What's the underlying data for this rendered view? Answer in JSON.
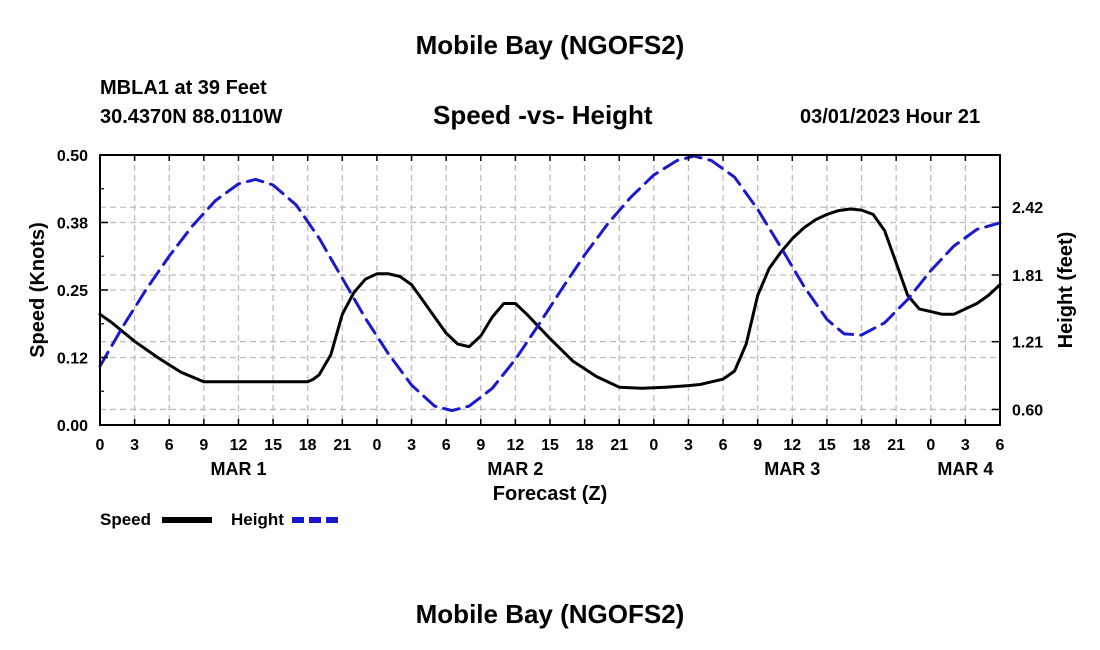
{
  "header": {
    "title": "Mobile Bay (NGOFS2)",
    "station": "MBLA1 at 39 Feet",
    "coords": "30.4370N  88.0110W",
    "subtitle": "Speed -vs- Height",
    "datetime": "03/01/2023 Hour 21"
  },
  "footer": {
    "title": "Mobile Bay (NGOFS2)"
  },
  "chart_data": {
    "type": "line",
    "xlabel": "Forecast (Z)",
    "x_ticks": [
      "0",
      "3",
      "6",
      "9",
      "12",
      "15",
      "18",
      "21",
      "0",
      "3",
      "6",
      "9",
      "12",
      "15",
      "18",
      "21",
      "0",
      "3",
      "6",
      "9",
      "12",
      "15",
      "18",
      "21",
      "0",
      "3",
      "6"
    ],
    "date_labels": [
      {
        "label": "MAR 1",
        "hour": 12
      },
      {
        "label": "MAR 2",
        "hour": 36
      },
      {
        "label": "MAR 3",
        "hour": 60
      },
      {
        "label": "MAR 4",
        "hour": 75
      }
    ],
    "xlim": [
      0,
      78
    ],
    "ylabel_left": "Speed (Knots)",
    "ylim_left": [
      0,
      0.5
    ],
    "yticks_left": [
      "0.00",
      "0.12",
      "0.25",
      "0.38",
      "0.50"
    ],
    "ylabel_right": "Height (feet)",
    "yticks_right": [
      {
        "label": "0.60",
        "value": 0.6
      },
      {
        "label": "1.21",
        "value": 1.21
      },
      {
        "label": "1.81",
        "value": 1.81
      },
      {
        "label": "2.42",
        "value": 2.42
      }
    ],
    "ylim_right": [
      0.46,
      2.89
    ],
    "grid": true,
    "legend_position": "bottom-left",
    "series": [
      {
        "name": "Speed",
        "axis": "left",
        "color": "#000000",
        "style": "solid",
        "x": [
          0,
          1,
          3,
          5,
          7,
          9,
          11,
          13,
          15,
          17,
          18,
          18.5,
          19,
          20,
          21,
          22,
          23,
          24,
          25,
          26,
          27,
          28,
          29,
          30,
          31,
          32,
          33,
          34,
          35,
          36,
          37,
          39,
          41,
          43,
          45,
          47,
          49,
          51,
          52,
          53,
          54,
          55,
          56,
          57,
          58,
          59,
          60,
          61,
          62,
          63,
          64,
          65,
          66,
          67,
          68,
          69,
          70,
          71,
          72,
          73,
          74,
          75,
          76,
          77,
          78
        ],
        "values": [
          0.205,
          0.19,
          0.155,
          0.125,
          0.098,
          0.08,
          0.08,
          0.08,
          0.08,
          0.08,
          0.08,
          0.085,
          0.093,
          0.13,
          0.205,
          0.245,
          0.27,
          0.28,
          0.28,
          0.275,
          0.26,
          0.23,
          0.2,
          0.17,
          0.15,
          0.145,
          0.165,
          0.2,
          0.225,
          0.225,
          0.205,
          0.16,
          0.118,
          0.09,
          0.07,
          0.068,
          0.07,
          0.073,
          0.075,
          0.08,
          0.085,
          0.1,
          0.15,
          0.24,
          0.29,
          0.32,
          0.345,
          0.365,
          0.38,
          0.39,
          0.397,
          0.4,
          0.398,
          0.39,
          0.36,
          0.3,
          0.24,
          0.215,
          0.21,
          0.205,
          0.205,
          0.215,
          0.225,
          0.24,
          0.26
        ]
      },
      {
        "name": "Height",
        "axis": "right",
        "color": "#1a1acc",
        "style": "dashed",
        "x": [
          0,
          2,
          4,
          6,
          8,
          10,
          12,
          13.5,
          15,
          17,
          19,
          21,
          23,
          25,
          27,
          29,
          30.5,
          32,
          34,
          36,
          38,
          40,
          42,
          44,
          46,
          48,
          50,
          51.5,
          53,
          55,
          57,
          59,
          61,
          63,
          64.5,
          66,
          68,
          70,
          72,
          74,
          76,
          78
        ],
        "values": [
          0.99,
          1.35,
          1.68,
          1.98,
          2.25,
          2.48,
          2.63,
          2.67,
          2.62,
          2.44,
          2.14,
          1.78,
          1.42,
          1.1,
          0.82,
          0.63,
          0.59,
          0.63,
          0.79,
          1.05,
          1.36,
          1.68,
          1.99,
          2.27,
          2.51,
          2.71,
          2.84,
          2.88,
          2.84,
          2.69,
          2.4,
          2.06,
          1.71,
          1.41,
          1.28,
          1.27,
          1.38,
          1.59,
          1.85,
          2.07,
          2.22,
          2.28
        ]
      }
    ]
  }
}
